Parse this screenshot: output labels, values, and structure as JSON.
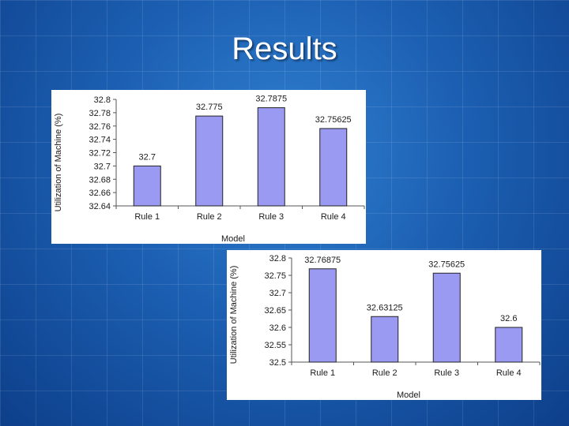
{
  "slide": {
    "title": "Results"
  },
  "chart_data": [
    {
      "type": "bar",
      "categories": [
        "Rule 1",
        "Rule 2",
        "Rule 3",
        "Rule 4"
      ],
      "values": [
        32.7,
        32.775,
        32.7875,
        32.75625
      ],
      "data_labels": [
        "32.7",
        "32.775",
        "32.7875",
        "32.75625"
      ],
      "yticks": [
        "32.64",
        "32.66",
        "32.68",
        "32.7",
        "32.72",
        "32.74",
        "32.76",
        "32.78",
        "32.8"
      ],
      "ylim": [
        32.64,
        32.8
      ],
      "xlabel": "Model",
      "ylabel": "Utilization of Machine (%)",
      "bar_color": "#9a9af2",
      "grid": false
    },
    {
      "type": "bar",
      "categories": [
        "Rule 1",
        "Rule 2",
        "Rule 3",
        "Rule 4"
      ],
      "values": [
        32.76875,
        32.63125,
        32.75625,
        32.6
      ],
      "data_labels": [
        "32.76875",
        "32.63125",
        "32.75625",
        "32.6"
      ],
      "yticks": [
        "32.5",
        "32.55",
        "32.6",
        "32.65",
        "32.7",
        "32.75",
        "32.8"
      ],
      "ylim": [
        32.5,
        32.8
      ],
      "xlabel": "Model",
      "ylabel": "Utilization of Machine (%)",
      "bar_color": "#9a9af2",
      "grid": false
    }
  ]
}
